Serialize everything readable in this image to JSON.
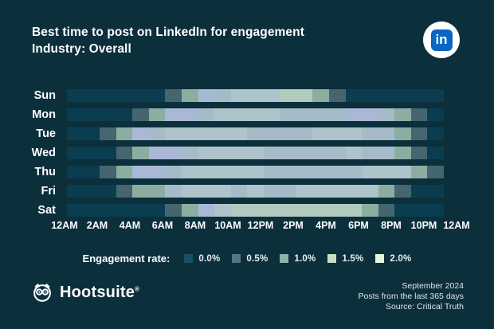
{
  "header": {
    "title": "Best time to post on LinkedIn for engagement",
    "subtitle": "Industry: Overall",
    "linkedin_text": "in",
    "linkedin_blue": "#0A66C2"
  },
  "chart_data": {
    "type": "heatmap",
    "title": "Best time to post on LinkedIn for engagement",
    "subtitle": "Industry: Overall",
    "x_tick_labels": [
      "12AM",
      "2AM",
      "4AM",
      "6AM",
      "8AM",
      "10AM",
      "12PM",
      "2PM",
      "4PM",
      "6PM",
      "8PM",
      "10PM",
      "12AM"
    ],
    "x_range_hours": [
      0,
      24
    ],
    "rows": [
      "Sun",
      "Mon",
      "Tue",
      "Wed",
      "Thu",
      "Fri",
      "Sat"
    ],
    "palette": {
      "e0": "#0A3D4F",
      "e05": "#45666F",
      "e10": "#8BAEA0",
      "e12": "#B3CBBF",
      "b10": "#A6BBC8",
      "b12": "#AEC3CA",
      "peak": "#A9B8D5",
      "none": null
    },
    "palette_meaning": {
      "e0": "0.0% engagement (dark teal)",
      "e05": "0.5% engagement (slate teal)",
      "e10": "1.0% engagement (sage green)",
      "e12": "~1.5% engagement (light sage)",
      "b10": "~1.0-1.5% engagement (blue-gray)",
      "b12": "~1.5% engagement (light blue-gray)",
      "peak": "peak engagement hour (lavender highlight)",
      "none": "row ends / background"
    },
    "cells_by_day": {
      "Sun": [
        "e0",
        "e0",
        "e0",
        "e0",
        "e0",
        "e0",
        "e05",
        "e10",
        "peak",
        "b10",
        "b12",
        "b12",
        "b12",
        "e12",
        "e12",
        "e10",
        "e05",
        "e0",
        "e0",
        "e0",
        "e0",
        "e0",
        "e0",
        "none"
      ],
      "Mon": [
        "e0",
        "e0",
        "e0",
        "e0",
        "e05",
        "e10",
        "peak",
        "peak",
        "b10",
        "b12",
        "b12",
        "b12",
        "b12",
        "b10",
        "b10",
        "b10",
        "b10",
        "peak",
        "peak",
        "b10",
        "e10",
        "e05",
        "e0",
        "none"
      ],
      "Tue": [
        "e0",
        "e0",
        "e05",
        "e10",
        "peak",
        "b10",
        "b12",
        "b12",
        "b12",
        "b12",
        "b12",
        "b10",
        "b10",
        "b10",
        "b10",
        "b12",
        "b12",
        "b12",
        "b10",
        "b10",
        "e10",
        "e05",
        "e0",
        "none"
      ],
      "Wed": [
        "e0",
        "e0",
        "e0",
        "e05",
        "e10",
        "peak",
        "peak",
        "b10",
        "b12",
        "b12",
        "b12",
        "b12",
        "b10",
        "b10",
        "b10",
        "b10",
        "b10",
        "b12",
        "b10",
        "b10",
        "e10",
        "e05",
        "e0",
        "none"
      ],
      "Thu": [
        "e0",
        "e0",
        "e05",
        "e10",
        "peak",
        "peak",
        "b10",
        "b12",
        "b12",
        "b12",
        "b12",
        "b12",
        "b10",
        "b10",
        "b10",
        "b10",
        "b10",
        "b10",
        "b12",
        "b12",
        "b12",
        "e10",
        "e05",
        "none"
      ],
      "Fri": [
        "e0",
        "e0",
        "e0",
        "e05",
        "e10",
        "e10",
        "b10",
        "b12",
        "b12",
        "b12",
        "b10",
        "b12",
        "b10",
        "b10",
        "b12",
        "b12",
        "b12",
        "b12",
        "b12",
        "e10",
        "e05",
        "e0",
        "e0",
        "none"
      ],
      "Sat": [
        "e0",
        "e0",
        "e0",
        "e0",
        "e0",
        "e0",
        "e05",
        "e10",
        "peak",
        "b12",
        "e12",
        "e12",
        "e12",
        "e12",
        "e12",
        "e12",
        "e12",
        "e12",
        "e10",
        "e05",
        "e0",
        "e0",
        "e0",
        "none"
      ]
    },
    "legend": {
      "label": "Engagement rate:",
      "items": [
        {
          "label": "0.0%",
          "color": "#175063"
        },
        {
          "label": "0.5%",
          "color": "#507880"
        },
        {
          "label": "1.0%",
          "color": "#90B1A7"
        },
        {
          "label": "1.5%",
          "color": "#C4DFC2"
        },
        {
          "label": "2.0%",
          "color": "#E5F4DD"
        }
      ]
    },
    "grid": false,
    "legend_position": "bottom"
  },
  "footer": {
    "brand_name": "Hootsuite",
    "brand_mark": "®",
    "right_lines": [
      "September 2024",
      "Posts from the last 365 days",
      "Source: Critical Truth"
    ]
  },
  "colors": {
    "background": "#0C2F3C",
    "text": "#FFFFFF",
    "footer_text": "#DCE7EB"
  }
}
